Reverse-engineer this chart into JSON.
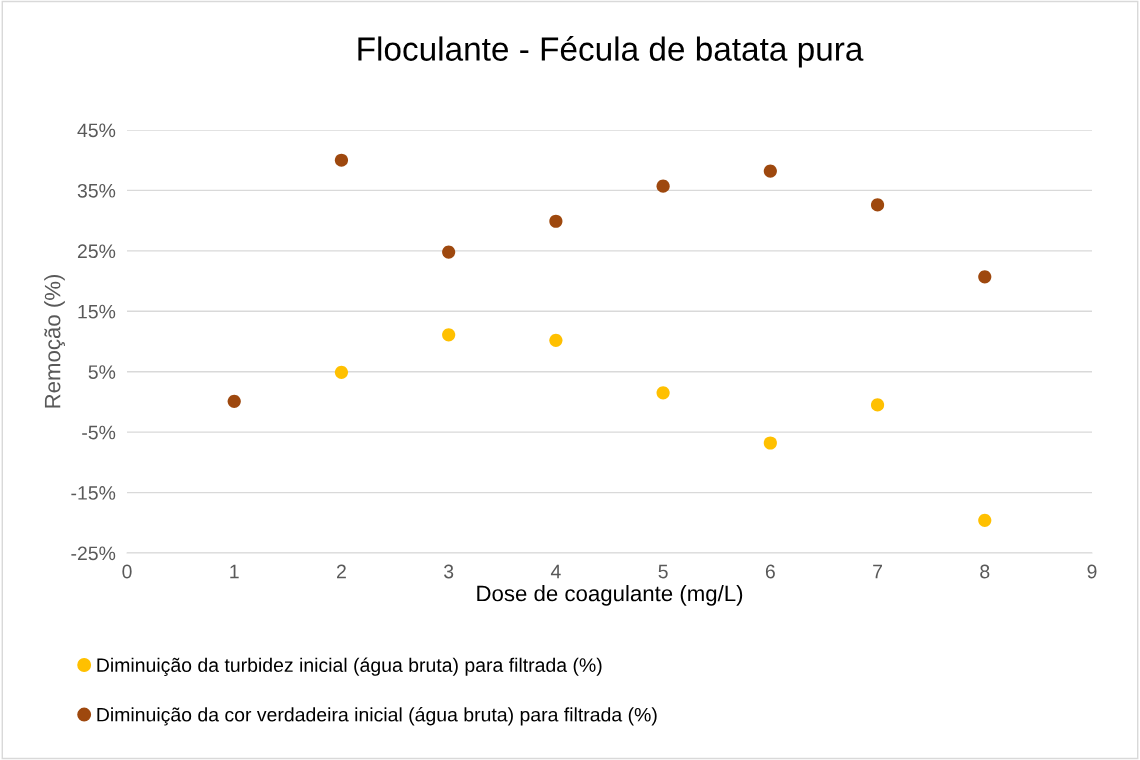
{
  "chart_data": {
    "type": "scatter",
    "title": "Floculante - Fécula de batata pura",
    "xlabel": "Dose de coagulante (mg/L)",
    "ylabel": "Remoção (%)",
    "x": [
      1,
      2,
      3,
      4,
      5,
      6,
      7,
      8
    ],
    "series": [
      {
        "name": "Diminuição da turbidez inicial (água bruta) para filtrada (%)",
        "color": "#ffc000",
        "values": [
          null,
          4.9,
          11.1,
          10.2,
          1.5,
          -6.8,
          -0.5,
          -19.6
        ]
      },
      {
        "name": "Diminuição da cor verdadeira inicial (água bruta) para filtrada (%)",
        "color": "#9e480e",
        "values": [
          0.1,
          40.0,
          24.8,
          29.9,
          35.7,
          38.2,
          32.6,
          20.7
        ]
      }
    ],
    "xlim": [
      0,
      9
    ],
    "xticks": [
      0,
      1,
      2,
      3,
      4,
      5,
      6,
      7,
      8,
      9
    ],
    "ylim": [
      -25,
      45
    ],
    "yticks": [
      {
        "value": -25,
        "label": "-25%"
      },
      {
        "value": -15,
        "label": "-15%"
      },
      {
        "value": -5,
        "label": "-5%"
      },
      {
        "value": 5,
        "label": "5%"
      },
      {
        "value": 15,
        "label": "15%"
      },
      {
        "value": 25,
        "label": "25%"
      },
      {
        "value": 35,
        "label": "35%"
      },
      {
        "value": 45,
        "label": "45%"
      }
    ],
    "grid": "y",
    "legend": "bottom",
    "marker": "circle"
  }
}
